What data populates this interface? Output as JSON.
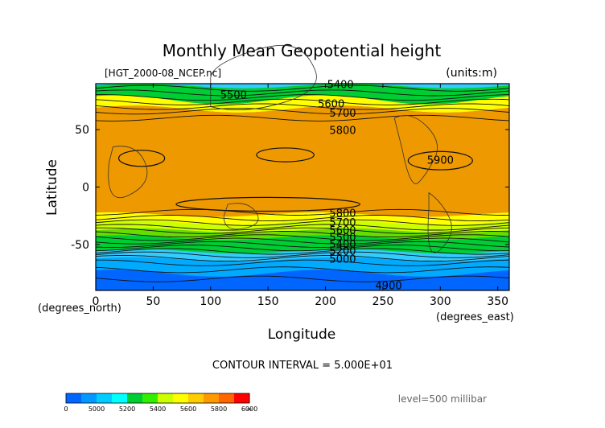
{
  "chart_data": {
    "type": "heatmap",
    "title": "Monthly Mean Geopotential height",
    "file_label": "[HGT_2000-08_NCEP.nc]",
    "units_label": "(units:m)",
    "xlabel": "Longitude",
    "ylabel": "Latitude",
    "xunit_label": "(degrees_east)",
    "yunit_label": "(degrees_north)",
    "xlim": [
      0,
      360
    ],
    "ylim": [
      -90,
      90
    ],
    "xticks": [
      0,
      50,
      100,
      150,
      200,
      250,
      300,
      350
    ],
    "yticks": [
      -50,
      0,
      50
    ],
    "contour_interval": "CONTOUR INTERVAL = 5.000E+01",
    "level_label": "level=500 millibar",
    "contour_labels": [
      {
        "text": "5400",
        "x": 213,
        "y": 89
      },
      {
        "text": "5500",
        "x": 120,
        "y": 80
      },
      {
        "text": "5600",
        "x": 205,
        "y": 72
      },
      {
        "text": "5700",
        "x": 215,
        "y": 64
      },
      {
        "text": "5800",
        "x": 215,
        "y": 49
      },
      {
        "text": "5900",
        "x": 300,
        "y": 23
      },
      {
        "text": "5800",
        "x": 215,
        "y": -23
      },
      {
        "text": "5700",
        "x": 215,
        "y": -31
      },
      {
        "text": "5600",
        "x": 215,
        "y": -38
      },
      {
        "text": "5500",
        "x": 215,
        "y": -44
      },
      {
        "text": "5400",
        "x": 215,
        "y": -50
      },
      {
        "text": "5200",
        "x": 215,
        "y": -56
      },
      {
        "text": "5000",
        "x": 215,
        "y": -63
      },
      {
        "text": "4900",
        "x": 255,
        "y": -86
      }
    ],
    "bands": [
      {
        "level": 5400,
        "color": "#33ccff"
      },
      {
        "level": 5500,
        "color": "#00cc33"
      },
      {
        "level": 5600,
        "color": "#66dd00"
      },
      {
        "level": 5700,
        "color": "#ffff00"
      },
      {
        "level": 5800,
        "color": "#ffcc00"
      },
      {
        "level": 5900,
        "color": "#ee9900"
      }
    ],
    "colorbar": {
      "colors": [
        "#0066ff",
        "#0099ff",
        "#00ccff",
        "#00ffff",
        "#00cc33",
        "#33ee00",
        "#ccff00",
        "#ffff00",
        "#ffcc00",
        "#ff9900",
        "#ff6600",
        "#ff0000"
      ],
      "tick_labels": [
        "0",
        "5000",
        "5200",
        "5400",
        "5600",
        "5800",
        "6000",
        "∞"
      ]
    }
  }
}
